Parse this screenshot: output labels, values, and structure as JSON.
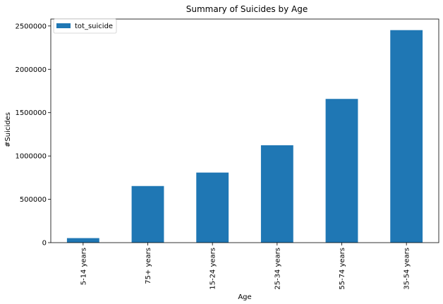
{
  "chart_data": {
    "type": "bar",
    "title": "Summary of Suicides by Age",
    "xlabel": "Age",
    "ylabel": "#Suicides",
    "categories": [
      "5-14 years",
      "75+ years",
      "15-24 years",
      "25-34 years",
      "55-74 years",
      "35-54 years"
    ],
    "series": [
      {
        "name": "tot_suicide",
        "values": [
          52264,
          653118,
          808542,
          1123912,
          1658443,
          2452141
        ]
      }
    ],
    "ylim": [
      0,
      2580000
    ],
    "yticks": [
      0,
      500000,
      1000000,
      1500000,
      2000000,
      2500000
    ],
    "ytick_labels": [
      "0",
      "500000",
      "1000000",
      "1500000",
      "2000000",
      "2500000"
    ],
    "grid": false,
    "legend_position": "top-left",
    "colors": {
      "bar": "#1f77b4"
    }
  }
}
